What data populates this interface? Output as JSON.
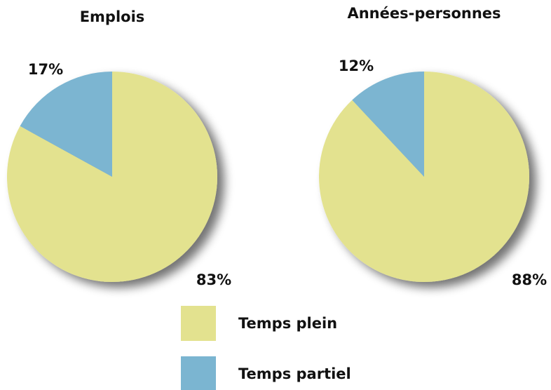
{
  "chart_data": [
    {
      "type": "pie",
      "title": "Emplois",
      "values": [
        83,
        17
      ],
      "value_labels": [
        "83%",
        "17%"
      ]
    },
    {
      "type": "pie",
      "title": "Années-personnes",
      "values": [
        88,
        12
      ],
      "value_labels": [
        "88%",
        "12%"
      ]
    }
  ],
  "legend": {
    "labels": [
      "Temps plein",
      "Temps partiel"
    ],
    "colors": [
      "#e3e28f",
      "#7bb5d1"
    ]
  }
}
